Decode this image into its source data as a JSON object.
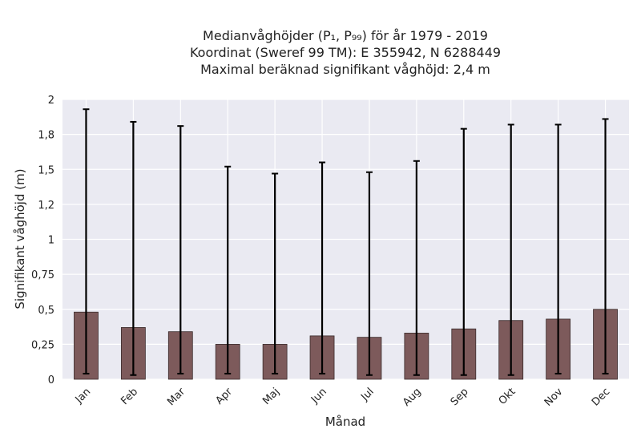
{
  "chart_data": {
    "type": "bar",
    "title_lines": [
      "Medianvåghöjder (P₁, P₉₉) för år 1979 - 2019",
      "Koordinat (Sweref 99 TM): E 355942, N 6288449",
      "Maximal beräknad signifikant våghöjd: 2,4 m"
    ],
    "xlabel": "Månad",
    "ylabel": "Signifikant våghöjd (m)",
    "ylim": [
      0,
      2
    ],
    "grid": true,
    "yticks": [
      {
        "value": 0,
        "label": "0"
      },
      {
        "value": 0.25,
        "label": "0,25"
      },
      {
        "value": 0.5,
        "label": "0,5"
      },
      {
        "value": 0.75,
        "label": "0,75"
      },
      {
        "value": 1.0,
        "label": "1"
      },
      {
        "value": 1.25,
        "label": "1,2"
      },
      {
        "value": 1.5,
        "label": "1,5"
      },
      {
        "value": 1.75,
        "label": "1,8"
      },
      {
        "value": 2.0,
        "label": "2"
      }
    ],
    "categories": [
      "Jan",
      "Feb",
      "Mar",
      "Apr",
      "Maj",
      "Jun",
      "Jul",
      "Aug",
      "Sep",
      "Okt",
      "Nov",
      "Dec"
    ],
    "values": [
      0.48,
      0.37,
      0.34,
      0.25,
      0.25,
      0.31,
      0.3,
      0.33,
      0.36,
      0.42,
      0.43,
      0.5
    ],
    "p1": [
      0.04,
      0.03,
      0.04,
      0.04,
      0.04,
      0.04,
      0.03,
      0.03,
      0.03,
      0.03,
      0.04,
      0.04
    ],
    "p99": [
      1.93,
      1.84,
      1.81,
      1.52,
      1.47,
      1.55,
      1.48,
      1.56,
      1.79,
      1.82,
      1.82,
      1.86
    ],
    "colors": {
      "bar": "#7d5a5b",
      "bar_edge": "#3a2b2b",
      "error": "#000000",
      "background": "#eaeaf2",
      "grid": "#ffffff"
    }
  }
}
